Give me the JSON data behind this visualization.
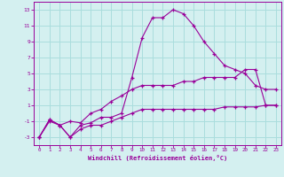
{
  "xlabel": "Windchill (Refroidissement éolien,°C)",
  "hours": [
    0,
    1,
    2,
    3,
    4,
    5,
    6,
    7,
    8,
    9,
    10,
    11,
    12,
    13,
    14,
    15,
    16,
    17,
    18,
    19,
    20,
    21,
    22,
    23
  ],
  "windchill": [
    -3,
    -0.8,
    -1.5,
    -3,
    -1.5,
    -1.2,
    -0.5,
    -0.5,
    0,
    4.5,
    9.5,
    12,
    12,
    13,
    12.5,
    11,
    9,
    7.5,
    6,
    5.5,
    5,
    3.5,
    3,
    3
  ],
  "temp": [
    -3,
    -0.8,
    -1.5,
    -1,
    -1.2,
    0,
    0.5,
    1.5,
    2.2,
    3,
    3.5,
    3.5,
    3.5,
    3.5,
    4,
    4,
    4.5,
    4.5,
    4.5,
    4.5,
    5.5,
    5.5,
    1,
    1
  ],
  "dewpoint": [
    -3,
    -1,
    -1.5,
    -3,
    -2,
    -1.5,
    -1.5,
    -1,
    -0.5,
    0,
    0.5,
    0.5,
    0.5,
    0.5,
    0.5,
    0.5,
    0.5,
    0.5,
    0.8,
    0.8,
    0.8,
    0.8,
    1,
    1
  ],
  "line_color": "#990099",
  "bg_color": "#d4f0f0",
  "grid_color": "#aadddd",
  "ylim": [
    -4,
    14
  ],
  "yticks": [
    -3,
    -1,
    1,
    3,
    5,
    7,
    9,
    11,
    13
  ],
  "xlim": [
    -0.5,
    23.5
  ]
}
